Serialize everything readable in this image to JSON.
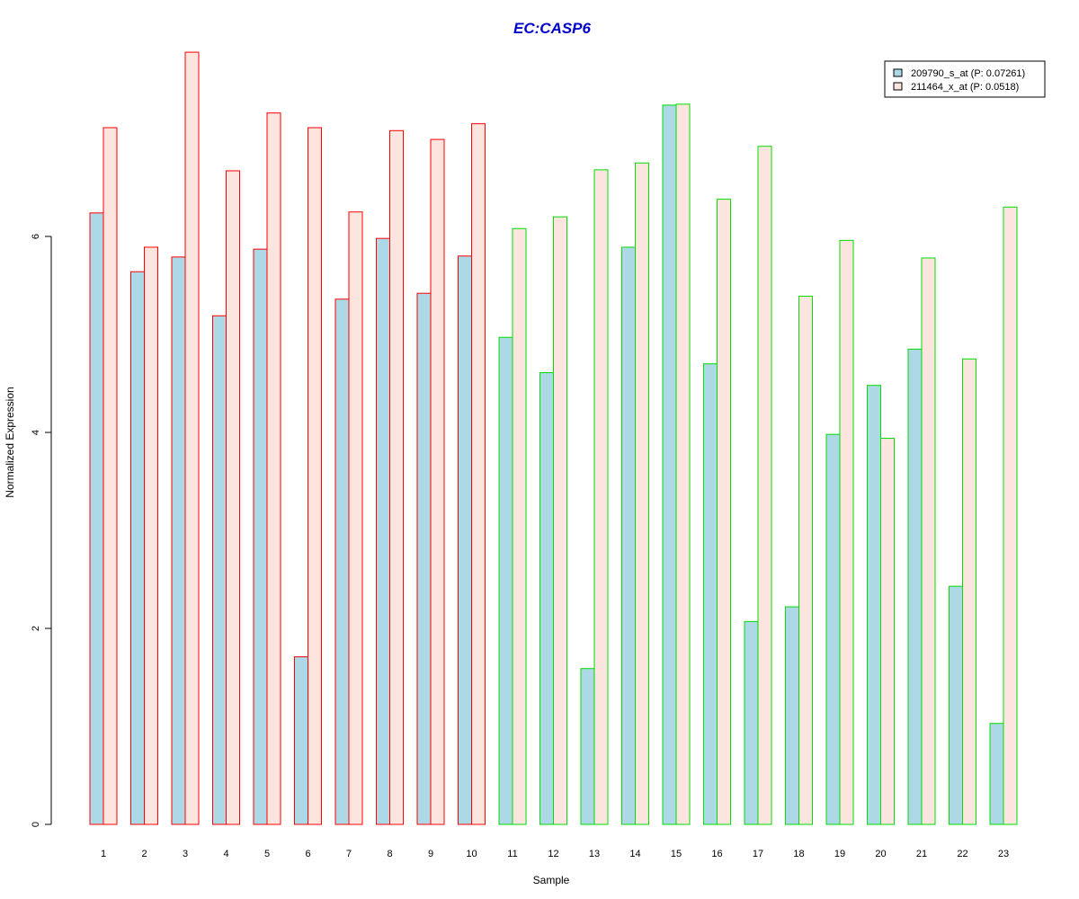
{
  "chart_data": {
    "type": "bar",
    "title": "EC:CASP6",
    "xlabel": "Sample",
    "ylabel": "Normalized Expression",
    "ylim": [
      0,
      7.9
    ],
    "yticks": [
      0,
      2,
      4,
      6
    ],
    "categories": [
      "1",
      "2",
      "3",
      "4",
      "5",
      "6",
      "7",
      "8",
      "9",
      "10",
      "11",
      "12",
      "13",
      "14",
      "15",
      "16",
      "17",
      "18",
      "19",
      "20",
      "21",
      "22",
      "23"
    ],
    "series": [
      {
        "name": "209790_s_at (P: 0.07261)",
        "fill": "#add8e6",
        "values": [
          6.24,
          5.64,
          5.79,
          5.19,
          5.87,
          1.71,
          5.36,
          5.98,
          5.42,
          5.8,
          4.97,
          4.61,
          1.59,
          5.89,
          7.34,
          4.7,
          2.07,
          2.22,
          3.98,
          4.48,
          4.85,
          2.43,
          1.03
        ]
      },
      {
        "name": "211464_x_at (P: 0.0518)",
        "fill": "#fde5df",
        "values": [
          7.11,
          5.89,
          7.88,
          6.67,
          7.26,
          7.11,
          6.25,
          7.08,
          6.99,
          7.15,
          6.08,
          6.2,
          6.68,
          6.75,
          7.35,
          6.38,
          6.92,
          5.39,
          5.96,
          3.94,
          5.78,
          4.75,
          6.3
        ]
      }
    ],
    "group_border_colors": [
      "#ff0000",
      "#ff0000",
      "#ff0000",
      "#ff0000",
      "#ff0000",
      "#ff0000",
      "#ff0000",
      "#ff0000",
      "#ff0000",
      "#ff0000",
      "#00dd00",
      "#00dd00",
      "#00dd00",
      "#00dd00",
      "#00dd00",
      "#00dd00",
      "#00dd00",
      "#00dd00",
      "#00dd00",
      "#00dd00",
      "#00dd00",
      "#00dd00",
      "#00dd00"
    ],
    "title_color": "#0000cc",
    "legend_position": "top-right",
    "grid": false
  }
}
